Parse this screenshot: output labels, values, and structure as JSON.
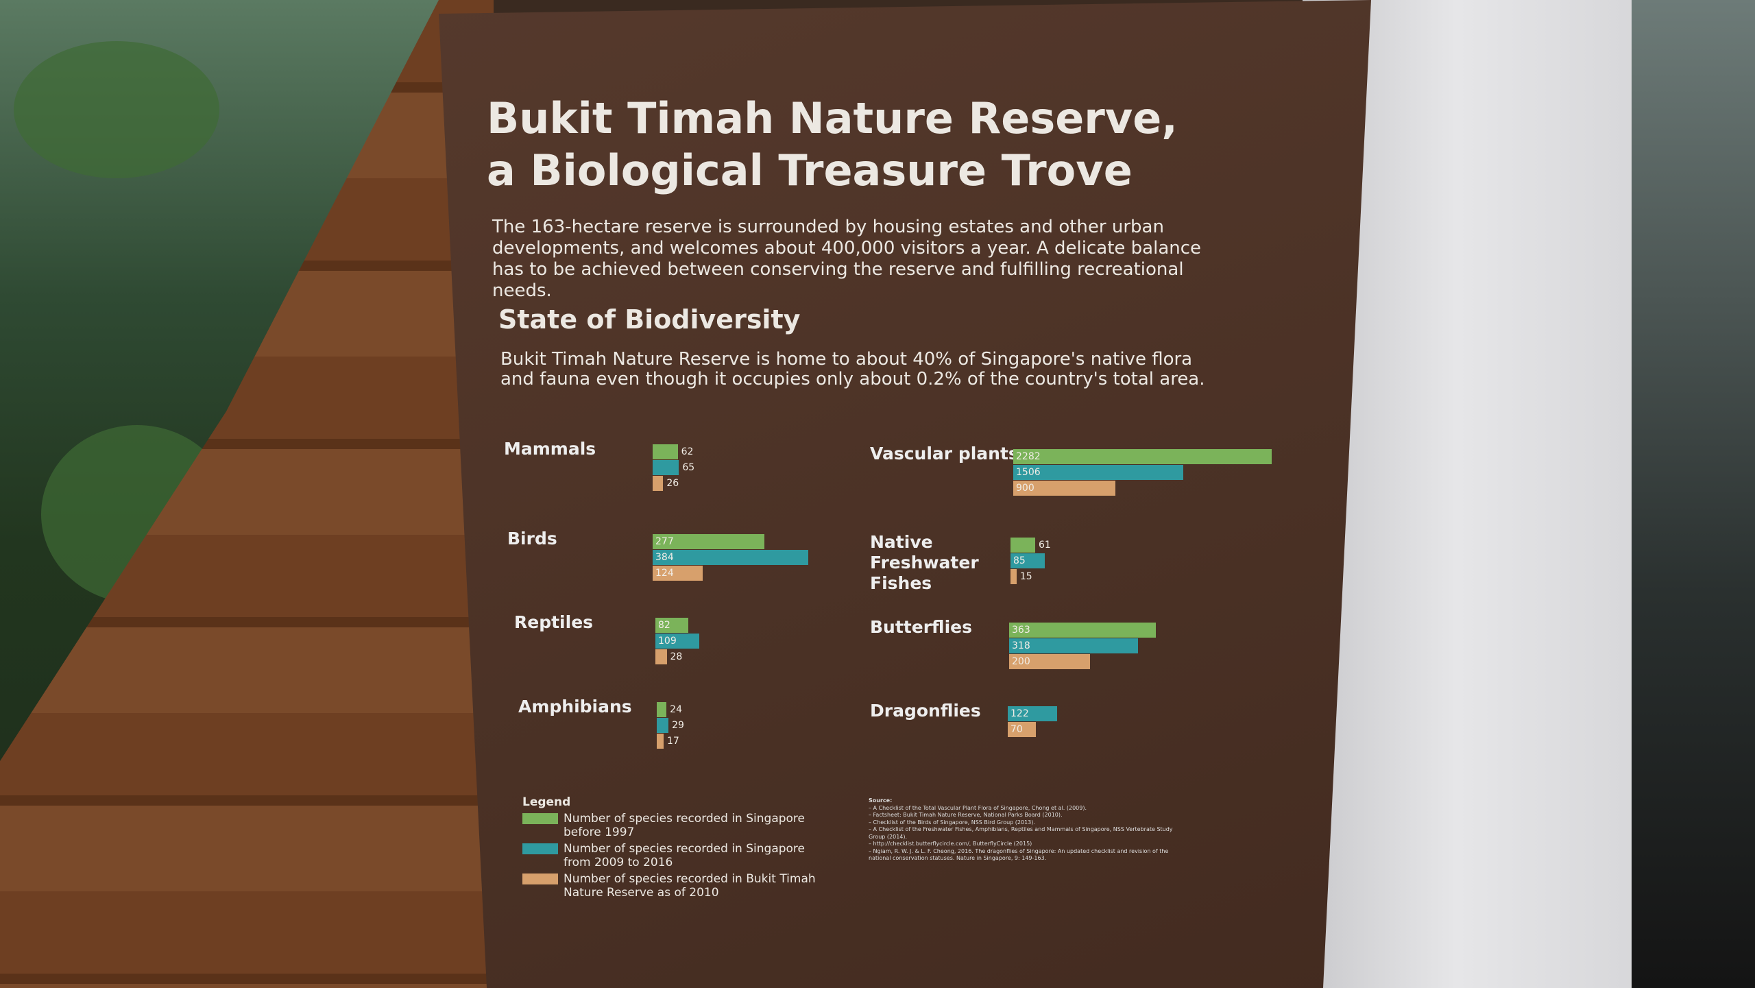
{
  "panel": {
    "title_line1": "Bukit Timah Nature Reserve,",
    "title_line2": "a Biological Treasure Trove",
    "intro": "The 163-hectare reserve is surrounded by housing estates and other urban developments, and welcomes about 400,000 visitors a year. A delicate balance has to be achieved between conserving the reserve and fulfilling recreational needs.",
    "section_title": "State of Biodiversity",
    "section_text": "Bukit Timah Nature Reserve is home to about 40% of Singapore's native flora and fauna even though it occupies only about 0.2% of the country's total area."
  },
  "colors": {
    "before_1997": "#7bb35a",
    "2009_2016": "#2f9aa0",
    "btnr_2010": "#d7a06c"
  },
  "chart_data": {
    "type": "bar",
    "orientation": "horizontal",
    "categories": [
      "Mammals",
      "Birds",
      "Reptiles",
      "Amphibians",
      "Vascular plants",
      "Native Freshwater Fishes",
      "Butterflies",
      "Dragonflies"
    ],
    "series": [
      {
        "name": "Number of species recorded in Singapore before 1997",
        "values": [
          62,
          277,
          82,
          24,
          2282,
          61,
          363,
          null
        ]
      },
      {
        "name": "Number of species recorded in Singapore from 2009 to 2016",
        "values": [
          65,
          384,
          109,
          29,
          1506,
          85,
          318,
          122
        ]
      },
      {
        "name": "Number of species recorded in Bukit Timah Nature Reserve as of 2010",
        "values": [
          26,
          124,
          28,
          17,
          900,
          15,
          200,
          70
        ]
      }
    ],
    "legend_title": "Legend",
    "legend_placement": "bottom-left"
  },
  "source": {
    "title": "Source:",
    "items": [
      "A Checklist of the Total Vascular Plant Flora of Singapore, Chong et al. (2009).",
      "Factsheet: Bukit Timah Nature Reserve, National Parks Board (2010).",
      "Checklist of the Birds of Singapore, NSS Bird Group (2013).",
      "A Checklist of the Freshwater Fishes, Amphibians, Reptiles and Mammals of Singapore, NSS Vertebrate Study Group (2014).",
      "http://checklist.butterflycircle.com/, ButterflyCircle (2015)",
      "Ngiam, R. W. J. & L. F. Cheong, 2016. The dragonflies of Singapore: An updated checklist and revision of the national conservation statuses. Nature in Singapore, 9: 149-163."
    ]
  }
}
